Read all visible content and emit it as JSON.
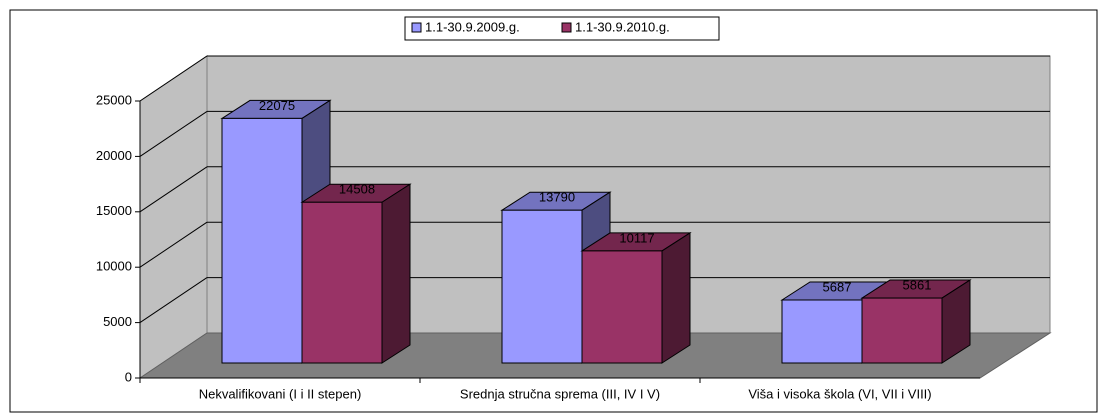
{
  "chart_data": {
    "type": "bar3d",
    "categories": [
      "Nekvalifikovani (I i II stepen)",
      "Srednja stručna sprema (III, IV I V)",
      "Viša i visoka škola (VI, VII i VIII)"
    ],
    "series": [
      {
        "name": "1.1-30.9.2009.g.",
        "color": "#9999ff",
        "values": [
          22075,
          13790,
          5687
        ]
      },
      {
        "name": "1.1-30.9.2010.g.",
        "color": "#993366",
        "values": [
          14508,
          10117,
          5861
        ]
      }
    ],
    "ylim": [
      0,
      25000
    ],
    "yticks": [
      0,
      5000,
      10000,
      15000,
      20000,
      25000
    ],
    "grid": true,
    "legend": "top"
  }
}
